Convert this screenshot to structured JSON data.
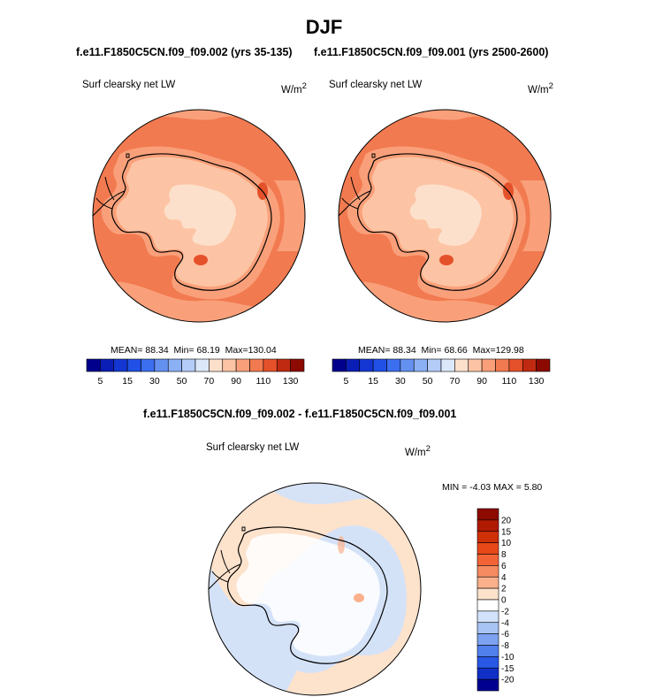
{
  "figure": {
    "title": "DJF",
    "left_case": "f.e11.F1850C5CN.f09_f09.002 (yrs 35-135)",
    "right_case": "f.e11.F1850C5CN.f09_f09.001 (yrs 2500-2600)",
    "diff_title": "f.e11.F1850C5CN.f09_f09.002 - f.e11.F1850C5CN.f09_f09.001"
  },
  "chart_data": [
    {
      "type": "heatmap",
      "projection": "south-polar-stereographic",
      "variable": "Surf clearsky net LW",
      "units_base": "W/m",
      "units_exp": "2",
      "stats": {
        "mean_label": "MEAN=",
        "mean": "88.34",
        "min_label": "Min=",
        "min": "68.19",
        "max_label": "Max=",
        "max": "130.04"
      },
      "colorbar": {
        "levels": [
          5,
          10,
          15,
          20,
          30,
          40,
          50,
          60,
          70,
          80,
          90,
          100,
          110,
          120,
          130
        ],
        "tick_labels": [
          "5",
          "15",
          "30",
          "50",
          "70",
          "90",
          "110",
          "130"
        ],
        "colors": [
          "#00008c",
          "#0a1db4",
          "#1436d2",
          "#2050e6",
          "#3c6ef0",
          "#6490f0",
          "#8cb0f4",
          "#b4ccf8",
          "#dce8fa",
          "#fde0cc",
          "#fcc4a4",
          "#f9a07a",
          "#f27a50",
          "#e5512a",
          "#c02a10",
          "#8c0a00"
        ]
      }
    },
    {
      "type": "heatmap",
      "projection": "south-polar-stereographic",
      "variable": "Surf clearsky net LW",
      "units_base": "W/m",
      "units_exp": "2",
      "stats": {
        "mean_label": "MEAN=",
        "mean": "88.34",
        "min_label": "Min=",
        "min": "68.66",
        "max_label": "Max=",
        "max": "129.98"
      },
      "colorbar": {
        "levels": [
          5,
          10,
          15,
          20,
          30,
          40,
          50,
          60,
          70,
          80,
          90,
          100,
          110,
          120,
          130
        ],
        "tick_labels": [
          "5",
          "15",
          "30",
          "50",
          "70",
          "90",
          "110",
          "130"
        ],
        "colors": [
          "#00008c",
          "#0a1db4",
          "#1436d2",
          "#2050e6",
          "#3c6ef0",
          "#6490f0",
          "#8cb0f4",
          "#b4ccf8",
          "#dce8fa",
          "#fde0cc",
          "#fcc4a4",
          "#f9a07a",
          "#f27a50",
          "#e5512a",
          "#c02a10",
          "#8c0a00"
        ]
      }
    },
    {
      "type": "heatmap",
      "projection": "south-polar-stereographic",
      "variable": "Surf clearsky net LW",
      "units_base": "W/m",
      "units_exp": "2",
      "stats": {
        "min_label": "MIN =",
        "min": "-4.03",
        "max_label": "MAX =",
        "max": "5.80"
      },
      "colorbar": {
        "levels": [
          20,
          15,
          10,
          8,
          6,
          4,
          2,
          0,
          -2,
          -4,
          -6,
          -8,
          -10,
          -15,
          -20
        ],
        "tick_labels": [
          "20",
          "15",
          "10",
          "8",
          "6",
          "4",
          "2",
          "0",
          "-2",
          "-4",
          "-6",
          "-8",
          "-10",
          "-15",
          "-20"
        ],
        "colors": [
          "#8c0a00",
          "#b01a00",
          "#d03008",
          "#e84818",
          "#f26438",
          "#f68a60",
          "#fab08c",
          "#fde2cc",
          "#ffffff",
          "#d2e2fa",
          "#a8c4f4",
          "#7ca2f0",
          "#5080ec",
          "#2858e4",
          "#1030c8",
          "#000090"
        ]
      }
    }
  ]
}
